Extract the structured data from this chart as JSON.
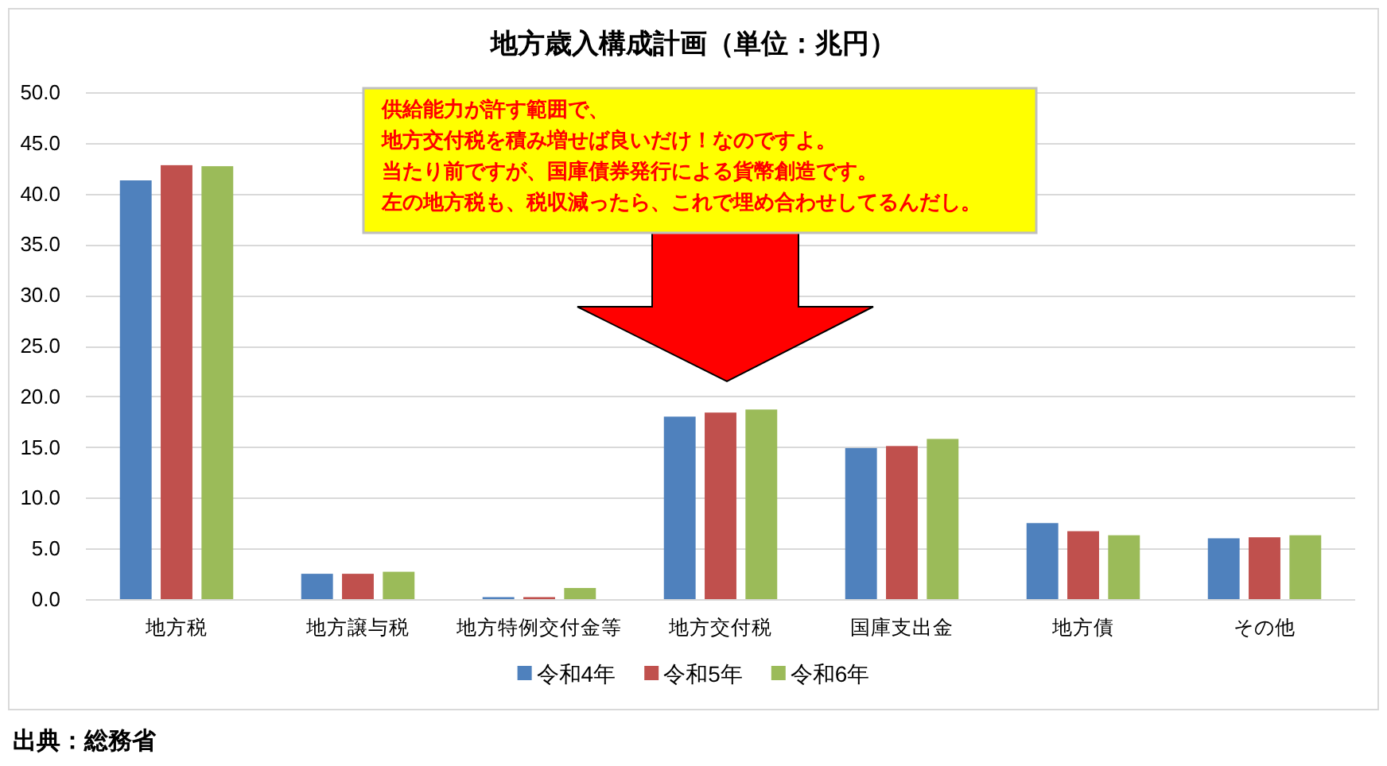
{
  "chart_data": {
    "type": "bar",
    "title": "地方歳入構成計画（単位：兆円）",
    "categories": [
      "地方税",
      "地方譲与税",
      "地方特例交付金等",
      "地方交付税",
      "国庫支出金",
      "地方債",
      "その他"
    ],
    "series": [
      {
        "name": "令和4年",
        "color": "#4f81bd",
        "values": [
          41.3,
          2.5,
          0.2,
          18.0,
          14.9,
          7.5,
          6.0
        ]
      },
      {
        "name": "令和5年",
        "color": "#c0504d",
        "values": [
          42.8,
          2.5,
          0.2,
          18.4,
          15.1,
          6.7,
          6.1
        ]
      },
      {
        "name": "令和6年",
        "color": "#9bbb59",
        "values": [
          42.7,
          2.7,
          1.1,
          18.7,
          15.8,
          6.3,
          6.3
        ]
      }
    ],
    "ylim": [
      0,
      50
    ],
    "yticks": [
      {
        "value": 0,
        "label": "0.0"
      },
      {
        "value": 5,
        "label": "5.0"
      },
      {
        "value": 10,
        "label": "10.0"
      },
      {
        "value": 15,
        "label": "15.0"
      },
      {
        "value": 20,
        "label": "20.0"
      },
      {
        "value": 25,
        "label": "25.0"
      },
      {
        "value": 30,
        "label": "30.0"
      },
      {
        "value": 35,
        "label": "35.0"
      },
      {
        "value": 40,
        "label": "40.0"
      },
      {
        "value": 45,
        "label": "45.0"
      },
      {
        "value": 50,
        "label": "50.0"
      }
    ],
    "grid": "y",
    "legend": "bottom",
    "annotations": [
      "供給能力が許す範囲で、",
      "地方交付税を積み増せば良いだけ！なのですよ。",
      "当たり前ですが、国庫債券発行による貨幣創造です。",
      "左の地方税も、税収減ったら、これで埋め合わせしてるんだし。",
      "出典：総務省"
    ]
  }
}
